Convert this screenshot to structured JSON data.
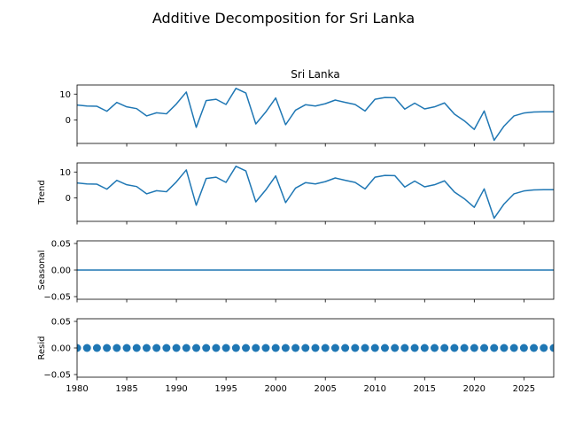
{
  "chart_data": {
    "type": "line",
    "title": "Additive Decomposition for Sri Lanka",
    "x": [
      1980,
      1981,
      1982,
      1983,
      1984,
      1985,
      1986,
      1987,
      1988,
      1989,
      1990,
      1991,
      1992,
      1993,
      1994,
      1995,
      1996,
      1997,
      1998,
      1999,
      2000,
      2001,
      2002,
      2003,
      2004,
      2005,
      2006,
      2007,
      2008,
      2009,
      2010,
      2011,
      2012,
      2013,
      2014,
      2015,
      2016,
      2017,
      2018,
      2019,
      2020,
      2021,
      2022,
      2023,
      2024,
      2025,
      2026,
      2027,
      2028
    ],
    "xlim": [
      1980,
      2028
    ],
    "xticks": [
      "1980",
      "1985",
      "1990",
      "1995",
      "2000",
      "2005",
      "2010",
      "2015",
      "2020",
      "2025"
    ],
    "panels": [
      {
        "id": "observed",
        "title": "Sri Lanka",
        "ylabel": "",
        "ylim": [
          -9,
          13.5
        ],
        "yticks": [
          "0",
          "10"
        ],
        "style": "line",
        "values": [
          5.8,
          5.4,
          5.3,
          3.4,
          6.8,
          5.1,
          4.4,
          1.6,
          2.8,
          2.4,
          6.2,
          10.8,
          -2.8,
          7.5,
          8.0,
          6.0,
          12.2,
          10.4,
          -1.5,
          3.1,
          8.5,
          -1.8,
          3.8,
          5.9,
          5.4,
          6.3,
          7.7,
          6.8,
          6.0,
          3.5,
          8.0,
          8.7,
          8.6,
          4.2,
          6.5,
          4.3,
          5.1,
          6.6,
          2.3,
          -0.3,
          -3.6,
          3.5,
          -7.8,
          -2.3,
          1.6,
          2.7,
          3.1,
          3.2,
          3.2
        ]
      },
      {
        "id": "trend",
        "title": "",
        "ylabel": "Trend",
        "ylim": [
          -9,
          13.5
        ],
        "yticks": [
          "0",
          "10"
        ],
        "style": "line",
        "values": [
          5.8,
          5.4,
          5.3,
          3.4,
          6.8,
          5.1,
          4.4,
          1.6,
          2.8,
          2.4,
          6.2,
          10.8,
          -2.8,
          7.5,
          8.0,
          6.0,
          12.2,
          10.4,
          -1.5,
          3.1,
          8.5,
          -1.8,
          3.8,
          5.9,
          5.4,
          6.3,
          7.7,
          6.8,
          6.0,
          3.5,
          8.0,
          8.7,
          8.6,
          4.2,
          6.5,
          4.3,
          5.1,
          6.6,
          2.3,
          -0.3,
          -3.6,
          3.5,
          -7.8,
          -2.3,
          1.6,
          2.7,
          3.1,
          3.2,
          3.2
        ]
      },
      {
        "id": "seasonal",
        "title": "",
        "ylabel": "Seasonal",
        "ylim": [
          -0.055,
          0.055
        ],
        "yticks": [
          "−0.05",
          "0.00",
          "0.05"
        ],
        "style": "line",
        "values": [
          0,
          0,
          0,
          0,
          0,
          0,
          0,
          0,
          0,
          0,
          0,
          0,
          0,
          0,
          0,
          0,
          0,
          0,
          0,
          0,
          0,
          0,
          0,
          0,
          0,
          0,
          0,
          0,
          0,
          0,
          0,
          0,
          0,
          0,
          0,
          0,
          0,
          0,
          0,
          0,
          0,
          0,
          0,
          0,
          0,
          0,
          0,
          0,
          0
        ]
      },
      {
        "id": "resid",
        "title": "",
        "ylabel": "Resid",
        "ylim": [
          -0.055,
          0.055
        ],
        "yticks": [
          "−0.05",
          "0.00",
          "0.05"
        ],
        "style": "scatter",
        "values": [
          0,
          0,
          0,
          0,
          0,
          0,
          0,
          0,
          0,
          0,
          0,
          0,
          0,
          0,
          0,
          0,
          0,
          0,
          0,
          0,
          0,
          0,
          0,
          0,
          0,
          0,
          0,
          0,
          0,
          0,
          0,
          0,
          0,
          0,
          0,
          0,
          0,
          0,
          0,
          0,
          0,
          0,
          0,
          0,
          0,
          0,
          0,
          0,
          0
        ]
      }
    ],
    "grid": false,
    "colors": {
      "series": "#1f77b4",
      "axes": "#000000"
    }
  }
}
